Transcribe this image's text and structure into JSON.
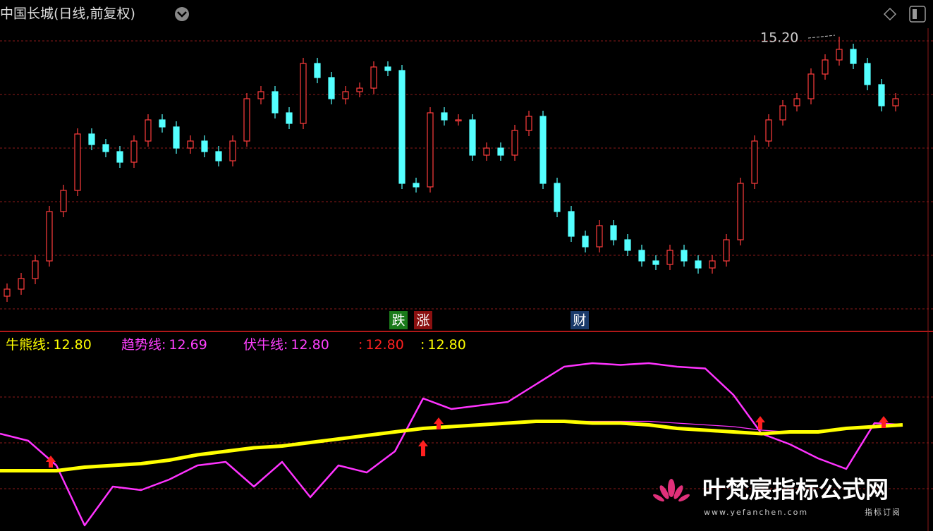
{
  "header": {
    "title": "中国长城(日线,前复权)"
  },
  "chart_data": [
    {
      "type": "candlestick",
      "ylim": [
        11.02,
        15.32
      ],
      "annotations": [
        {
          "text": "15.20",
          "value": 15.2
        }
      ],
      "badges": [
        "跌",
        "涨",
        "财"
      ],
      "open": [
        11.52,
        11.62,
        11.77,
        12.02,
        12.72,
        13.02,
        13.82,
        13.67,
        13.57,
        13.42,
        13.72,
        14.02,
        13.92,
        13.62,
        13.72,
        13.57,
        13.44,
        13.72,
        14.32,
        14.42,
        14.12,
        13.97,
        14.82,
        14.62,
        14.32,
        14.42,
        14.47,
        14.77,
        14.72,
        13.12,
        13.07,
        14.12,
        14.02,
        14.02,
        13.52,
        13.62,
        13.52,
        13.87,
        14.07,
        13.12,
        12.72,
        12.37,
        12.22,
        12.52,
        12.32,
        12.17,
        12.02,
        11.97,
        12.17,
        12.02,
        11.92,
        12.02,
        12.32,
        13.12,
        13.72,
        14.02,
        14.22,
        14.32,
        14.67,
        14.87,
        15.02,
        14.82,
        14.52,
        14.22
      ],
      "high": [
        11.7,
        11.85,
        12.1,
        12.8,
        13.1,
        13.9,
        13.9,
        13.75,
        13.65,
        13.8,
        14.1,
        14.1,
        14.0,
        13.8,
        13.8,
        13.65,
        13.8,
        14.4,
        14.5,
        14.5,
        14.2,
        14.9,
        14.9,
        14.7,
        14.5,
        14.55,
        14.85,
        14.85,
        14.8,
        13.2,
        14.2,
        14.2,
        14.1,
        14.1,
        13.7,
        13.7,
        13.95,
        14.15,
        14.15,
        13.2,
        12.8,
        12.45,
        12.6,
        12.6,
        12.4,
        12.25,
        12.1,
        12.25,
        12.25,
        12.1,
        12.1,
        12.4,
        13.2,
        13.8,
        14.1,
        14.3,
        14.4,
        14.75,
        14.95,
        15.2,
        15.1,
        14.9,
        14.6,
        14.4
      ],
      "low": [
        11.44,
        11.54,
        11.69,
        11.94,
        12.64,
        12.94,
        13.59,
        13.49,
        13.34,
        13.34,
        13.64,
        13.84,
        13.54,
        13.54,
        13.49,
        13.36,
        13.36,
        13.64,
        14.24,
        14.04,
        13.89,
        13.89,
        14.54,
        14.24,
        14.24,
        14.34,
        14.39,
        14.64,
        13.04,
        12.99,
        12.99,
        13.94,
        13.94,
        13.44,
        13.44,
        13.44,
        13.44,
        13.79,
        13.04,
        12.64,
        12.29,
        12.14,
        12.14,
        12.24,
        12.09,
        11.94,
        11.89,
        11.89,
        11.94,
        11.84,
        11.84,
        11.94,
        12.24,
        13.04,
        13.64,
        13.94,
        14.14,
        14.24,
        14.59,
        14.79,
        14.74,
        14.44,
        14.14,
        14.14
      ],
      "close": [
        11.62,
        11.77,
        12.02,
        12.72,
        13.02,
        13.82,
        13.67,
        13.57,
        13.42,
        13.72,
        14.02,
        13.92,
        13.62,
        13.72,
        13.57,
        13.44,
        13.72,
        14.32,
        14.42,
        14.12,
        13.97,
        14.82,
        14.62,
        14.32,
        14.42,
        14.47,
        14.77,
        14.72,
        13.12,
        13.07,
        14.12,
        14.02,
        14.02,
        13.52,
        13.62,
        13.52,
        13.87,
        14.07,
        13.12,
        12.72,
        12.37,
        12.22,
        12.52,
        12.32,
        12.17,
        12.02,
        11.97,
        12.17,
        12.02,
        11.92,
        12.02,
        12.32,
        13.12,
        13.72,
        14.02,
        14.22,
        14.32,
        14.67,
        14.87,
        15.02,
        14.82,
        14.52,
        14.22,
        14.32
      ],
      "up_color": "#ff3c3c",
      "down_color": "#54ffff"
    },
    {
      "type": "line",
      "ylim": [
        12.21,
        13.31
      ],
      "legend": [
        {
          "label": "牛熊线:",
          "value": {
            "value": 12.8,
            "label": "12.80"
          },
          "color": "#ffff00"
        },
        {
          "label": "趋势线:",
          "value": {
            "value": 12.69,
            "label": "12.69"
          },
          "color": "#ff40ff"
        },
        {
          "label": "伏牛线:",
          "value": {
            "value": 12.8,
            "label": "12.80"
          },
          "color": "#ff40ff"
        },
        {
          "label": ":",
          "value": {
            "value": 12.8,
            "label": "12.80"
          },
          "color": "#ff2020"
        },
        {
          "label": ":",
          "value": {
            "value": 12.8,
            "label": "12.80"
          },
          "color": "#ffff00"
        }
      ],
      "series": [
        {
          "color": "#ff33ff",
          "width": 2.5,
          "values": [
            12.75,
            12.71,
            12.57,
            12.23,
            12.45,
            12.43,
            12.49,
            12.57,
            12.59,
            12.45,
            12.59,
            12.39,
            12.57,
            12.53,
            12.65,
            12.95,
            12.89,
            12.91,
            12.93,
            13.03,
            13.13,
            13.15,
            13.14,
            13.15,
            13.13,
            13.12,
            12.97,
            12.75,
            12.69,
            12.61,
            12.55,
            12.81,
            12.8
          ]
        },
        {
          "color": "#ff33ff",
          "width": 1.2,
          "values": [
            12.54,
            12.54,
            12.54,
            12.56,
            12.57,
            12.58,
            12.6,
            12.63,
            12.65,
            12.67,
            12.68,
            12.7,
            12.72,
            12.74,
            12.76,
            12.78,
            12.79,
            12.8,
            12.81,
            12.82,
            12.82,
            12.82,
            12.82,
            12.82,
            12.81,
            12.8,
            12.79,
            12.77,
            12.76,
            12.76,
            12.78,
            12.79,
            12.8
          ]
        },
        {
          "color": "#ffff00",
          "width": 5,
          "values": [
            12.54,
            12.54,
            12.54,
            12.56,
            12.57,
            12.58,
            12.6,
            12.63,
            12.65,
            12.67,
            12.68,
            12.7,
            12.72,
            12.74,
            12.76,
            12.78,
            12.79,
            12.8,
            12.81,
            12.82,
            12.82,
            12.81,
            12.81,
            12.8,
            12.78,
            12.77,
            12.76,
            12.75,
            12.76,
            12.76,
            12.78,
            12.79,
            12.8
          ]
        }
      ]
    }
  ],
  "watermark": {
    "name": "叶梵宸指标公式网",
    "url": "www.yefanchen.com",
    "tag": "指标订阅"
  }
}
